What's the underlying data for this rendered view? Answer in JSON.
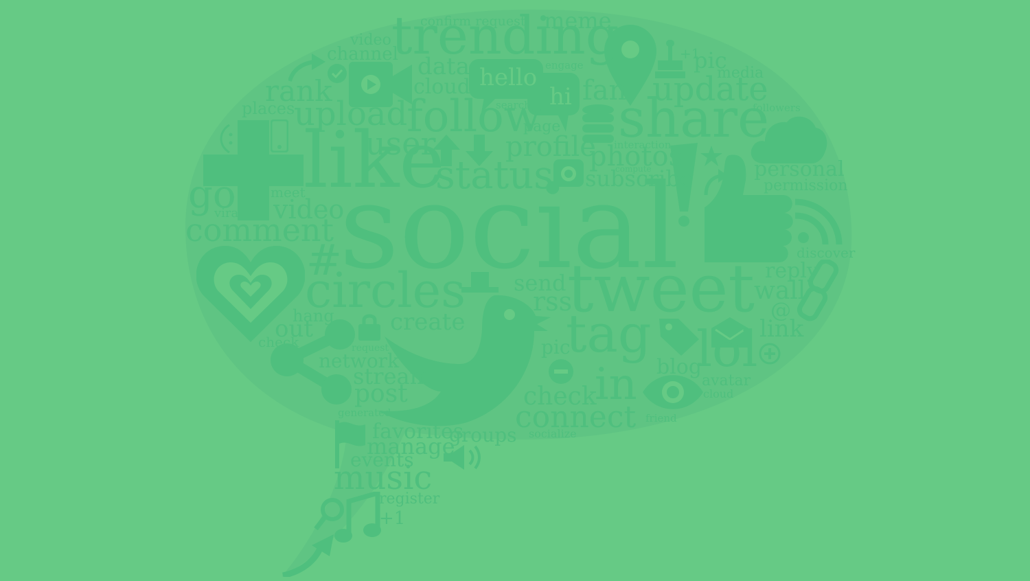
{
  "background_color": "#66ca85",
  "accent_color": "#4fbf7e",
  "icons": [
    "plus-icon",
    "heart-icon",
    "share-icon",
    "bird-icon",
    "thumbs-up-icon",
    "map-pin-icon",
    "cloud-icon",
    "video-camera-icon",
    "chat-bubble-icon",
    "database-icon",
    "eye-icon",
    "lock-icon",
    "flag-icon",
    "music-note-icon",
    "magnifier-icon",
    "arrow-icon",
    "rss-icon",
    "chain-link-icon",
    "envelope-icon",
    "tag-icon",
    "camera-icon",
    "megaphone-icon",
    "star-icon",
    "up-down-arrows-icon",
    "phone-icon",
    "check-circle-icon",
    "minus-circle-icon",
    "plus-circle-icon",
    "stamp-icon",
    "hat-icon"
  ],
  "words": {
    "confirm_request": "confirm request",
    "meme": "meme",
    "video": "video",
    "channel": "channel",
    "trending": "trending",
    "plus_one_top": "+1",
    "pic": "pic",
    "data": "data",
    "engage": "engage",
    "media": "media",
    "hello": "hello",
    "rank": "rank",
    "cloud": "cloud",
    "hi": "hi",
    "fan": "fan",
    "update": "update",
    "places": "places",
    "upload": "upload",
    "search": "search",
    "followers": "followers",
    "follow": "follow",
    "share": "share",
    "page": "page",
    "user": "user",
    "profile": "profile",
    "interaction": "interaction",
    "like": "like",
    "photos": "photos",
    "compute": "compute",
    "personal": "personal",
    "status": "status",
    "subscribe": "subscribe",
    "permission": "permission",
    "go": "go",
    "meet": "meet",
    "viral": "viral",
    "video2": "video",
    "comment": "comment",
    "social": "social",
    "discover": "discover",
    "hashtag": "#",
    "reply": "reply",
    "send": "send",
    "circles": "circles",
    "rss": "rss",
    "tweet": "tweet",
    "wall": "wall",
    "hang": "hang",
    "at": "@",
    "create": "create",
    "out": "out",
    "link": "link",
    "check": "check",
    "tag": "tag",
    "request": "request",
    "pic2": "pic",
    "lol": "lol",
    "network": "network",
    "blog": "blog",
    "stream": "stream",
    "avatar": "avatar",
    "check2": "check",
    "in": "in",
    "post": "post",
    "cloud2": "cloud",
    "generated": "generated",
    "connect": "connect",
    "friend": "friend",
    "favorites": "favorites",
    "groups": "groups",
    "socialize": "socialize",
    "manage": "manage",
    "events": "events",
    "music": "music",
    "register": "register",
    "plus_one_bottom": "+1"
  }
}
